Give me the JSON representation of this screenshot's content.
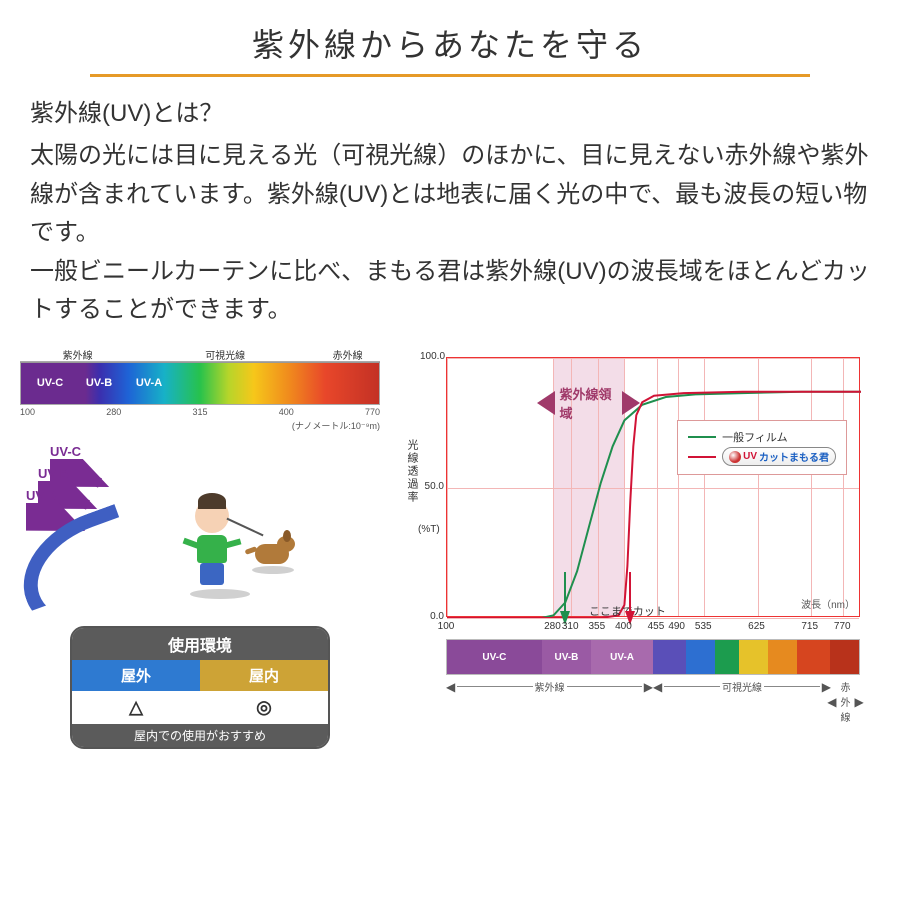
{
  "title": "紫外線からあなたを守る",
  "title_underline_color": "#e69a28",
  "intro": {
    "q": "紫外線(UV)とは？",
    "p1": "太陽の光には目に見える光（可視光線）のほかに、目に見えない赤外線や紫外線が含まれています。紫外線(UV)とは地表に届く光の中で、最も波長の短い物です。",
    "p2": "一般ビニールカーテンに比べ、まもる君は紫外線(UV)の波長域をほとんどカットすることができます。"
  },
  "spectrum_left": {
    "caps": [
      "紫外線",
      "可視光線",
      "赤外線"
    ],
    "cap_widths": [
      32,
      50,
      18
    ],
    "bands": {
      "uvc": "UV-C",
      "uvb": "UV-B",
      "uva": "UV-A"
    },
    "ticks": [
      "100",
      "280",
      "315",
      "400",
      "770"
    ],
    "nano": "(ナノメートル:10⁻⁹m)"
  },
  "uv_arrows": {
    "labels": [
      "UV-C",
      "UV-B",
      "UV-A"
    ],
    "color": "#7a2c93",
    "positions": [
      [
        30,
        0
      ],
      [
        18,
        22
      ],
      [
        6,
        44
      ]
    ]
  },
  "arc_color": "#3f5fc2",
  "usage": {
    "header": "使用環境",
    "cols": [
      {
        "label": "屋外",
        "bg": "#2e7ad1",
        "val": "△"
      },
      {
        "label": "屋内",
        "bg": "#cda336",
        "val": "◎"
      }
    ],
    "note": "屋内での使用がおすすめ"
  },
  "chart": {
    "type": "line",
    "xlim": [
      100,
      800
    ],
    "ylim": [
      0,
      100
    ],
    "yticks": [
      0,
      50,
      100
    ],
    "ytick_labels": [
      "0.0",
      "50.0",
      "100.0"
    ],
    "xticks": [
      100,
      280,
      310,
      355,
      400,
      455,
      490,
      535,
      625,
      715,
      770
    ],
    "ylabel": "光線透過率",
    "yunit": "(%T)",
    "xlabel": "波長（nm）",
    "grid_color": "#f3b6b6",
    "border_color": "#e33",
    "uv_band": {
      "from": 280,
      "to": 400,
      "color": "rgba(200,100,150,.22)",
      "label": "紫外線領域",
      "label_color": "#a03a6a"
    },
    "series": [
      {
        "name": "一般フィルム",
        "color": "#1f8f4e",
        "width": 2,
        "points": [
          [
            260,
            0
          ],
          [
            280,
            1
          ],
          [
            300,
            6
          ],
          [
            320,
            18
          ],
          [
            340,
            35
          ],
          [
            360,
            52
          ],
          [
            380,
            66
          ],
          [
            400,
            76
          ],
          [
            430,
            82
          ],
          [
            470,
            85
          ],
          [
            520,
            86
          ],
          [
            600,
            86.5
          ],
          [
            700,
            87
          ],
          [
            800,
            87
          ]
        ]
      },
      {
        "name": "UVカットまもる君",
        "color": "#d11336",
        "width": 2,
        "points": [
          [
            100,
            0
          ],
          [
            280,
            0
          ],
          [
            360,
            0
          ],
          [
            390,
            1
          ],
          [
            400,
            5
          ],
          [
            405,
            20
          ],
          [
            410,
            45
          ],
          [
            415,
            66
          ],
          [
            420,
            78
          ],
          [
            430,
            83
          ],
          [
            450,
            85.5
          ],
          [
            500,
            86.5
          ],
          [
            600,
            87
          ],
          [
            700,
            87
          ],
          [
            800,
            87
          ]
        ]
      }
    ],
    "legend": {
      "title": null,
      "items": [
        {
          "swatch": "#1f8f4e",
          "label": "一般フィルム"
        },
        {
          "swatch": "#d11336",
          "label_badge": {
            "logo": true,
            "text": "UVカットまもる君"
          }
        }
      ]
    },
    "cut_note": "ここまでカット",
    "arrows": [
      {
        "x": 300,
        "color": "#1f8f4e"
      },
      {
        "x": 410,
        "color": "#d11336"
      }
    ],
    "bottom_spectrum": [
      {
        "w": 23,
        "bg": "#8a4a99",
        "label": "UV-C"
      },
      {
        "w": 12,
        "bg": "#9a5aa4",
        "label": "UV-B"
      },
      {
        "w": 15,
        "bg": "#a86aad",
        "label": "UV-A"
      },
      {
        "w": 8,
        "bg": "#5a4fb8",
        "label": ""
      },
      {
        "w": 7,
        "bg": "#2d6fd1",
        "label": ""
      },
      {
        "w": 6,
        "bg": "#1c9c4e",
        "label": ""
      },
      {
        "w": 7,
        "bg": "#e6c22a",
        "label": ""
      },
      {
        "w": 7,
        "bg": "#e68a1f",
        "label": ""
      },
      {
        "w": 8,
        "bg": "#d6451f",
        "label": ""
      },
      {
        "w": 7,
        "bg": "#b8321b",
        "label": ""
      }
    ],
    "bottom_breaks": [
      {
        "label": "紫外線",
        "from": 0,
        "to": 50
      },
      {
        "label": "可視光線",
        "from": 50,
        "to": 93
      },
      {
        "label": "赤外線",
        "from": 93,
        "to": 100
      }
    ]
  }
}
